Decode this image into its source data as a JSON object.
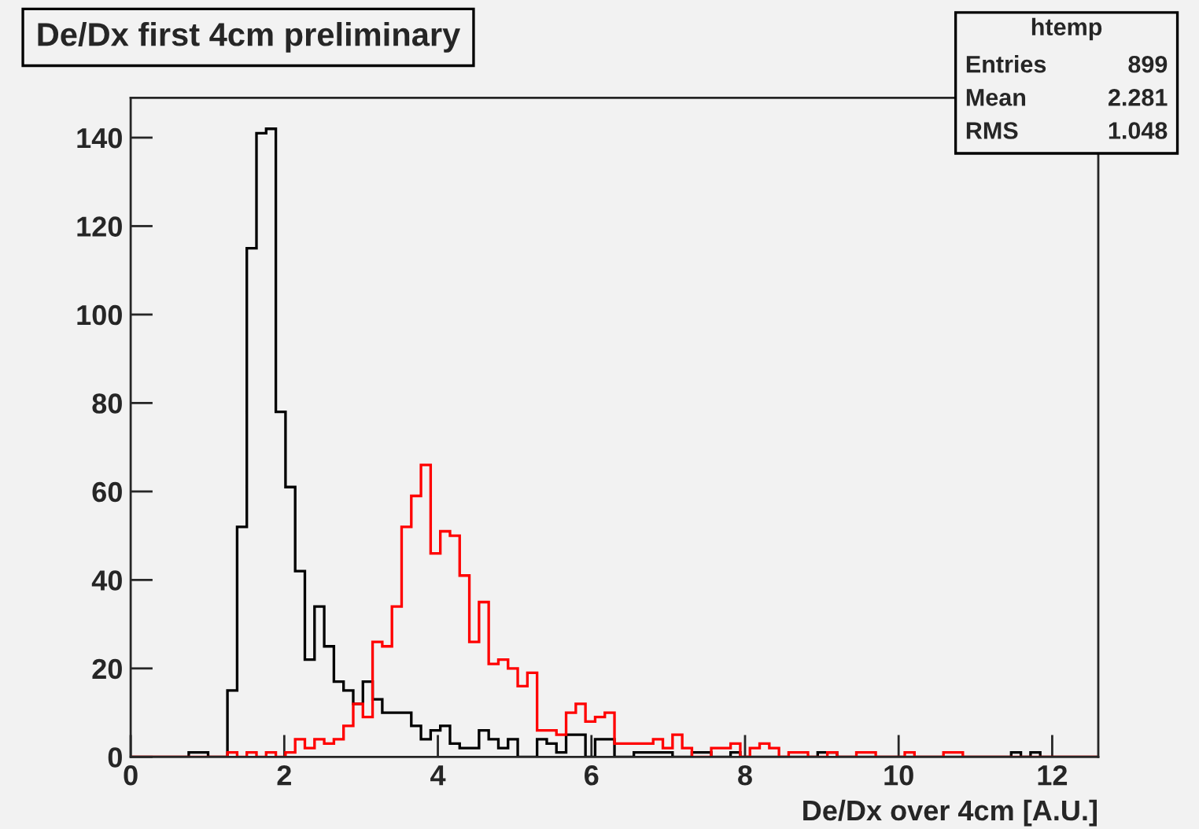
{
  "chart_data": {
    "type": "histogram",
    "title": "De/Dx first 4cm preliminary",
    "xlabel": "De/Dx over 4cm [A.U.]",
    "bins": [
      0,
      0.126,
      0.252,
      0.378,
      0.504,
      0.63,
      0.756,
      0.882,
      1.008,
      1.134,
      1.26,
      1.386,
      1.512,
      1.638,
      1.764,
      1.89,
      2.016,
      2.142,
      2.268,
      2.394,
      2.52,
      2.646,
      2.772,
      2.898,
      3.024,
      3.15,
      3.276,
      3.402,
      3.528,
      3.654,
      3.78,
      3.906,
      4.032,
      4.158,
      4.284,
      4.41,
      4.536,
      4.662,
      4.788,
      4.914,
      5.04,
      5.166,
      5.292,
      5.418,
      5.544,
      5.67,
      5.796,
      5.922,
      6.048,
      6.174,
      6.3,
      6.426,
      6.552,
      6.678,
      6.804,
      6.93,
      7.056,
      7.182,
      7.308,
      7.434,
      7.56,
      7.686,
      7.812,
      7.938,
      8.064,
      8.19,
      8.316,
      8.442,
      8.568,
      8.694,
      8.82,
      8.946,
      9.072,
      9.198,
      9.324,
      9.45,
      9.576,
      9.702,
      9.828,
      9.954,
      10.08,
      10.206,
      10.332,
      10.458,
      10.584,
      10.71,
      10.836,
      10.962,
      11.088,
      11.214,
      11.34,
      11.466,
      11.592,
      11.718,
      11.844,
      11.97,
      12.096,
      12.222,
      12.348,
      12.474,
      12.6
    ],
    "series": [
      {
        "color": "#000000",
        "values": [
          0,
          0,
          0,
          0,
          0,
          0,
          1,
          1,
          0,
          0,
          15,
          52,
          115,
          141,
          142,
          78,
          61,
          42,
          22,
          34,
          25,
          17,
          15,
          12,
          17,
          13,
          10,
          10,
          10,
          7,
          4,
          6,
          7,
          3,
          2,
          2,
          6,
          4,
          2,
          4,
          0,
          0,
          4,
          3,
          1,
          5,
          5,
          0,
          4,
          4,
          0,
          0,
          1,
          1,
          1,
          1,
          0,
          0,
          1,
          1,
          0,
          0,
          1,
          0,
          0,
          0,
          0,
          0,
          0,
          0,
          0,
          1,
          1,
          0,
          0,
          0,
          0,
          0,
          0,
          0,
          0,
          0,
          0,
          0,
          0,
          0,
          0,
          0,
          0,
          0,
          0,
          1,
          0,
          1,
          0,
          0,
          0,
          0,
          0,
          0
        ]
      },
      {
        "color": "#ff0000",
        "values": [
          0,
          0,
          0,
          0,
          0,
          0,
          0,
          0,
          0,
          0,
          1,
          0,
          1,
          0,
          1,
          0,
          1,
          4,
          2,
          4,
          3,
          4,
          7,
          12,
          9,
          26,
          25,
          34,
          52,
          59,
          66,
          46,
          51,
          50,
          41,
          26,
          35,
          21,
          22,
          20,
          16,
          19,
          6,
          6,
          5,
          10,
          12,
          8,
          9,
          10,
          3,
          3,
          3,
          3,
          4,
          2,
          5,
          2,
          0,
          0,
          2,
          2,
          3,
          0,
          2,
          3,
          2,
          0,
          1,
          1,
          0,
          0,
          1,
          0,
          0,
          1,
          1,
          0,
          0,
          0,
          1,
          0,
          0,
          0,
          1,
          1,
          0,
          0,
          0,
          0,
          0,
          0,
          0,
          0,
          0,
          0,
          0,
          0,
          0,
          0
        ]
      }
    ],
    "xlim": [
      0,
      12.6
    ],
    "ylim": [
      0,
      149
    ],
    "xticks": [
      0,
      2,
      4,
      6,
      8,
      10,
      12
    ],
    "yticks": [
      0,
      20,
      40,
      60,
      80,
      100,
      120,
      140
    ],
    "grid": false,
    "legend": false,
    "annotations": [
      "htemp",
      "Entries",
      "899",
      "Mean",
      "2.281",
      "RMS",
      "1.048"
    ]
  }
}
